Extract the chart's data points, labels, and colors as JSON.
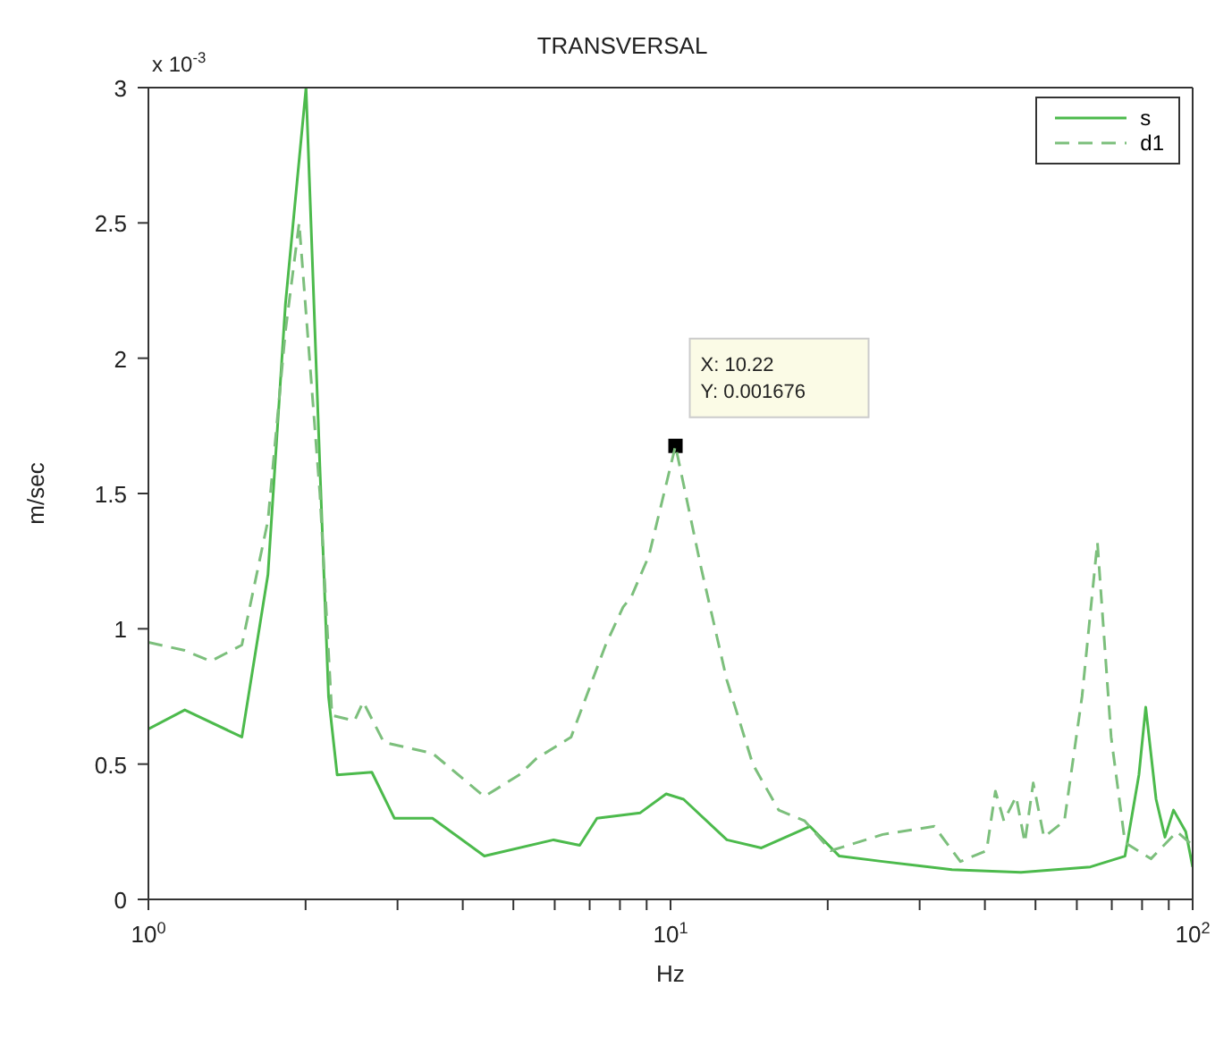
{
  "chart_data": {
    "type": "line",
    "title": "TRANSVERSAL",
    "xlabel": "Hz",
    "ylabel": "m/sec",
    "log": "x",
    "xlim": [
      1,
      100
    ],
    "xticks": [
      {
        "value": 1,
        "label": "10$^{0}$"
      },
      {
        "value": 2,
        "label": null
      },
      {
        "value": 3,
        "label": null
      },
      {
        "value": 4,
        "label": null
      },
      {
        "value": 5,
        "label": null
      },
      {
        "value": 6,
        "label": null
      },
      {
        "value": 7,
        "label": null
      },
      {
        "value": 8,
        "label": null
      },
      {
        "value": 9,
        "label": null
      },
      {
        "value": 10,
        "label": "10$^{1}$"
      },
      {
        "value": 20,
        "label": null
      },
      {
        "value": 30,
        "label": null
      },
      {
        "value": 40,
        "label": null
      },
      {
        "value": 50,
        "label": null
      },
      {
        "value": 60,
        "label": null
      },
      {
        "value": 70,
        "label": null
      },
      {
        "value": 80,
        "label": null
      },
      {
        "value": 90,
        "label": null
      },
      {
        "value": 100,
        "label": "10$^{2}$"
      }
    ],
    "ylim": [
      0,
      3
    ],
    "yticks": [
      0,
      0.5,
      1,
      1.5,
      2,
      2.5,
      3
    ],
    "legend": "top right",
    "marker": "none",
    "annotations": [
      "x 10$^{-3}$",
      {
        "text": "X: 10.22\nY: 0.001676",
        "x": 10.22,
        "y": 1.676
      }
    ],
    "series": [
      {
        "name": "s",
        "color": "#4cba4c",
        "line_style": "solid",
        "x": [
          1,
          1.174,
          1.51,
          1.694,
          1.83,
          2.004,
          2.13,
          2.213,
          2.299,
          2.679,
          2.958,
          3.5,
          4.4,
          5.97,
          6.7,
          7.23,
          8.75,
          9.81,
          10.59,
          12.82,
          14.93,
          18.49,
          21.05,
          25.5,
          34.6,
          46.9,
          63.7,
          74.2,
          78.9,
          81.3,
          85.1,
          88.5,
          91.9,
          97,
          100
        ],
        "values": [
          0.63,
          0.7,
          0.6,
          1.2,
          2.2,
          3,
          1.6,
          0.75,
          0.46,
          0.47,
          0.3,
          0.3,
          0.16,
          0.22,
          0.2,
          0.3,
          0.32,
          0.39,
          0.37,
          0.22,
          0.19,
          0.27,
          0.16,
          0.14,
          0.11,
          0.1,
          0.12,
          0.16,
          0.46,
          0.71,
          0.37,
          0.23,
          0.33,
          0.25,
          0.12
        ]
      },
      {
        "name": "d1",
        "color": "#7cbf7c",
        "line_style": "dashed",
        "x": [
          1,
          1.174,
          1.316,
          1.51,
          1.694,
          1.83,
          1.944,
          2.13,
          2.247,
          2.481,
          2.578,
          2.825,
          3.5,
          4.4,
          5.13,
          5.53,
          6.45,
          7.51,
          8.11,
          8.42,
          9.09,
          10.22,
          11.43,
          12.82,
          14.37,
          16.11,
          18.07,
          20.27,
          25.5,
          32,
          35.9,
          40.3,
          41.9,
          43.5,
          45.9,
          47.7,
          49.5,
          51.9,
          56.8,
          61.4,
          65.7,
          69.8,
          74.2,
          83.2,
          93.3,
          100
        ],
        "values": [
          0.95,
          0.92,
          0.88,
          0.94,
          1.4,
          2.1,
          2.5,
          1.5,
          0.68,
          0.66,
          0.73,
          0.58,
          0.54,
          0.38,
          0.46,
          0.52,
          0.6,
          0.94,
          1.08,
          1.12,
          1.27,
          1.676,
          1.23,
          0.81,
          0.5,
          0.33,
          0.29,
          0.18,
          0.24,
          0.27,
          0.14,
          0.18,
          0.4,
          0.29,
          0.38,
          0.21,
          0.43,
          0.23,
          0.29,
          0.75,
          1.32,
          0.6,
          0.21,
          0.15,
          0.25,
          0.2
        ]
      }
    ]
  }
}
